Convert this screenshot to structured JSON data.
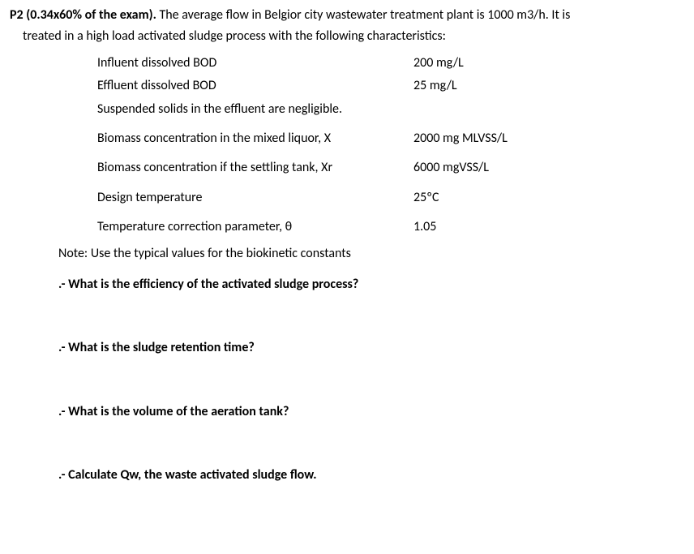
{
  "header": {
    "title": "P2 (0.34x60% of the exam).",
    "line1": " The average flow in Belgior city wastewater treatment plant is 1000 m3/h. It is",
    "line2": "treated in a high load activated sludge process with the following characteristics:"
  },
  "params": [
    {
      "label": "Influent dissolved BOD",
      "value": "200 mg/L",
      "spaced": false
    },
    {
      "label": "Effluent dissolved BOD",
      "value": "25 mg/L",
      "spaced": false
    },
    {
      "label": "Suspended solids in the effluent are negligible.",
      "value": "",
      "spaced": false
    },
    {
      "label": "Biomass concentration in the mixed liquor, X",
      "value": "2000 mg MLVSS/L",
      "spaced": true
    },
    {
      "label": "Biomass concentration if the settling tank, Xr",
      "value": "6000 mgVSS/L",
      "spaced": true
    },
    {
      "label": "Design temperature",
      "value": "25ºC",
      "spaced": true
    },
    {
      "label": "Temperature correction parameter, θ",
      "value": "1.05",
      "spaced": true
    }
  ],
  "note": "Note: Use the typical values for the biokinetic constants",
  "questions": [
    ".- What is the efficiency of the activated sludge process?",
    ".- What is the sludge retention time?",
    ".- What is the volume of the aeration tank?",
    ".- Calculate Qw, the waste activated sludge flow."
  ]
}
